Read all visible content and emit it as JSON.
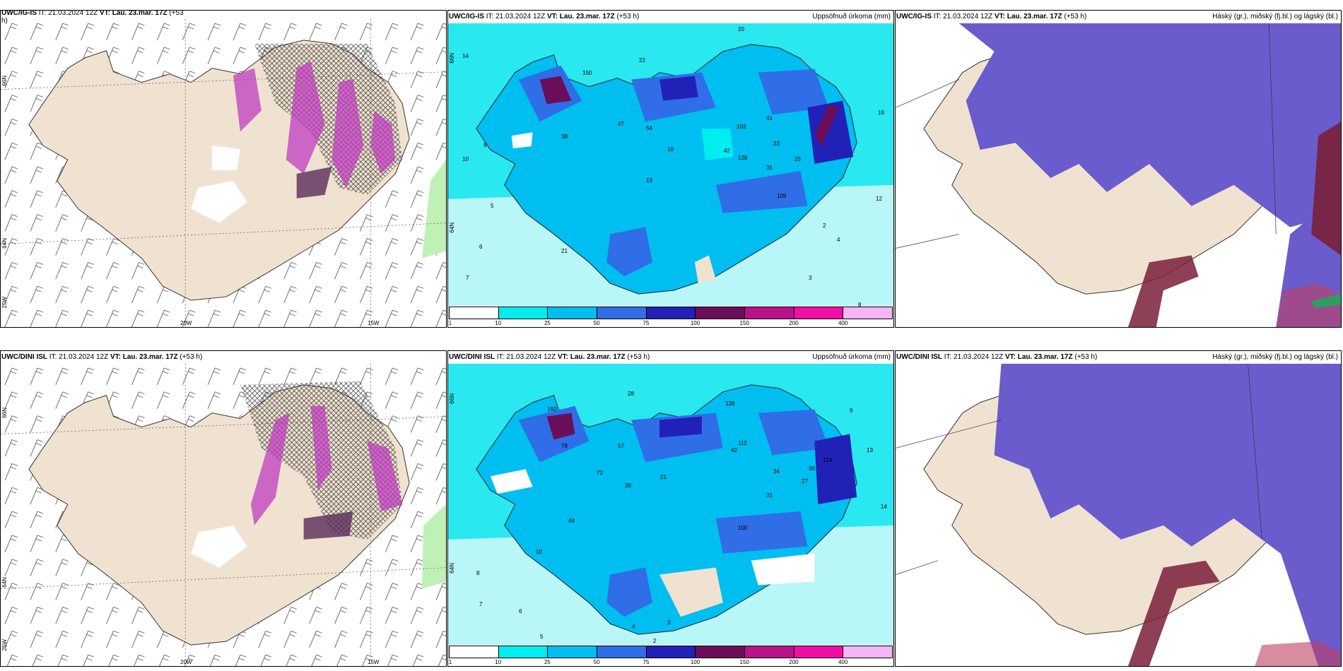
{
  "colors": {
    "sea_cyan": "#29e8f0",
    "sea_light": "#b8f6f8",
    "land_beige": "#f0e2d0",
    "snow_violet": "#6a5ccd",
    "magenta": "#c03cc0",
    "dark_red": "#7a1f3a",
    "hatch": "#404040"
  },
  "legend_colors": [
    "#ffffff",
    "#00eef0",
    "#00bef0",
    "#2f6ee6",
    "#2121b8",
    "#6b0e5a",
    "#b8138a",
    "#f10ea6",
    "#f4b6f4"
  ],
  "rows": [
    {
      "panels": [
        {
          "id": "wind",
          "model": "UWC/IG-IS",
          "it": "IT: 21.03.2024 12Z",
          "vt": "VT: Lau. 23.mar. 17Z",
          "lead": "(+53",
          "lead_wrap": "h)",
          "right_title": "",
          "axis": {
            "lat66": "66N",
            "lat64": "64N",
            "lat25w": "25W",
            "lon20": "20W",
            "lon15": "15W"
          }
        },
        {
          "id": "precip",
          "model": "UWC/IG-IS",
          "it": "IT: 21.03.2024 12Z",
          "vt": "VT: Lau. 23.mar. 17Z",
          "lead": "(+53 h)",
          "right_title": "Uppsöfnuð úrkoma (mm)",
          "axis": {
            "lat66": "66N",
            "lat64": "64N"
          },
          "labels": [
            "20",
            "14",
            "22",
            "10",
            "9",
            "7",
            "5",
            "6",
            "12",
            "16",
            "13",
            "8",
            "2",
            "3",
            "4",
            "21",
            "47",
            "38",
            "54",
            "19",
            "25",
            "42",
            "31",
            "33",
            "41",
            "103",
            "109",
            "128",
            "150"
          ]
        },
        {
          "id": "cloud",
          "model": "UWC/IG-IS",
          "it": "IT: 21.03.2024 12Z",
          "vt": "VT: Lau. 23.mar. 17Z",
          "lead": "(+53 h)",
          "right_title": "Háský (gr.), miðský (fj.bl.) og lágský (bl.)"
        }
      ]
    },
    {
      "panels": [
        {
          "id": "wind",
          "model": "UWC/DINI ISL",
          "it": "IT: 21.03.2024 12Z",
          "vt": "VT: Lau. 23.mar. 17Z",
          "lead": "(+53 h)",
          "right_title": "",
          "axis": {
            "lat66": "66N",
            "lat64": "64N",
            "lat25w": "25W",
            "lon20": "20W",
            "lon15": "15W"
          }
        },
        {
          "id": "precip",
          "model": "UWC/DINI ISL",
          "it": "IT: 21.03.2024 12Z",
          "vt": "VT: Lau. 23.mar. 17Z",
          "lead": "(+53 h)",
          "right_title": "Uppsöfnuð úrkoma (mm)",
          "axis": {
            "lat66": "66N",
            "lat64": "64N"
          },
          "labels": [
            "28",
            "9",
            "13",
            "14",
            "8",
            "7",
            "6",
            "5",
            "2",
            "3",
            "4",
            "10",
            "21",
            "36",
            "42",
            "44",
            "57",
            "31",
            "34",
            "30",
            "27",
            "72",
            "78",
            "100",
            "112",
            "124",
            "128",
            "150"
          ]
        },
        {
          "id": "cloud",
          "model": "UWC/DINI ISL",
          "it": "IT: 21.03.2024 12Z",
          "vt": "VT: Lau. 23.mar. 17Z",
          "lead": "(+53 h)",
          "right_title": "Háský (gr.), miðský (fj.bl.) og lágský (bl.)"
        }
      ]
    }
  ],
  "colorbar": {
    "ticks": [
      "1",
      "10",
      "25",
      "50",
      "75",
      "100",
      "150",
      "200",
      "400"
    ]
  }
}
